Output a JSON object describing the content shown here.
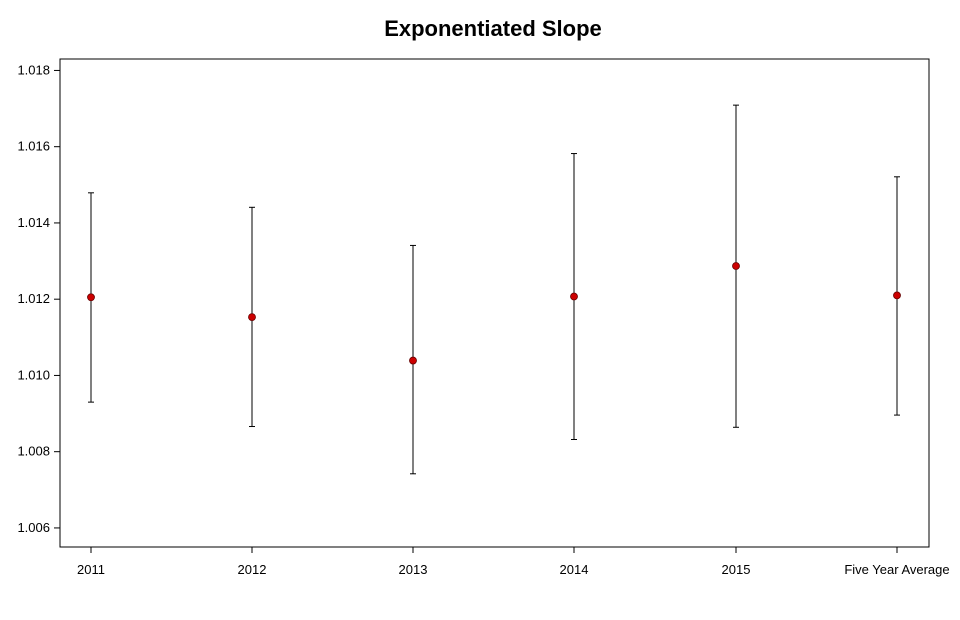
{
  "chart_data": {
    "type": "scatter",
    "title": "Exponentiated Slope",
    "xlabel": "",
    "ylabel": "",
    "categories": [
      "2011",
      "2012",
      "2013",
      "2014",
      "2015",
      "Five Year Average"
    ],
    "estimates": [
      1.01205,
      1.01153,
      1.01039,
      1.01207,
      1.01287,
      1.0121
    ],
    "lower": [
      1.0093,
      1.00866,
      1.00742,
      1.00832,
      1.00864,
      1.00896
    ],
    "upper": [
      1.01479,
      1.01441,
      1.01341,
      1.01582,
      1.01709,
      1.01521
    ],
    "ylim": [
      1.0055,
      1.0183
    ],
    "yticks": [
      "1.006",
      "1.008",
      "1.010",
      "1.012",
      "1.014",
      "1.016",
      "1.018"
    ],
    "ytick_values": [
      1.006,
      1.008,
      1.01,
      1.012,
      1.014,
      1.016,
      1.018
    ],
    "point_color": "#cc0000",
    "errorbar_color": "#000000",
    "grid": false
  }
}
